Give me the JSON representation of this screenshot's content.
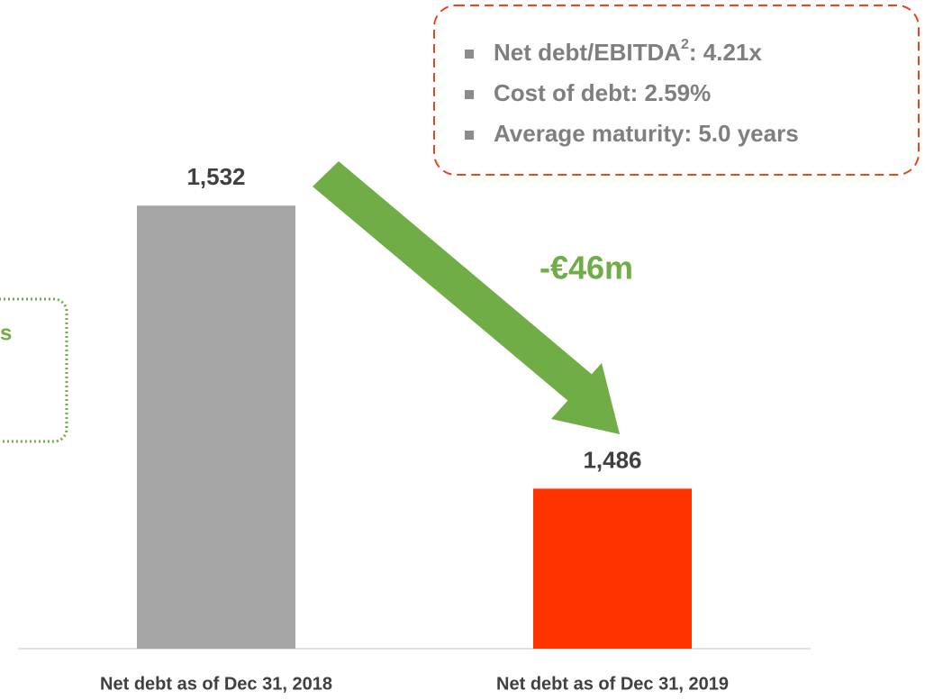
{
  "chart_data": {
    "type": "bar",
    "categories": [
      "Net debt as of Dec 31, 2018",
      "Net debt as of Dec 31, 2019"
    ],
    "values": [
      1532,
      1486
    ],
    "value_labels": [
      "1,532",
      "1,486"
    ],
    "colors": [
      "#a5a5a5",
      "#ff3300"
    ],
    "ylim": [
      1460,
      1560
    ],
    "change_label": "-€46m",
    "side_note": "s",
    "bullets": [
      {
        "text": "Net debt/EBITDA",
        "superscript": "2",
        "suffix": ": 4.21x"
      },
      {
        "text": "Cost of debt: 2.59%"
      },
      {
        "text": "Average maturity: 5.0 years"
      }
    ]
  }
}
